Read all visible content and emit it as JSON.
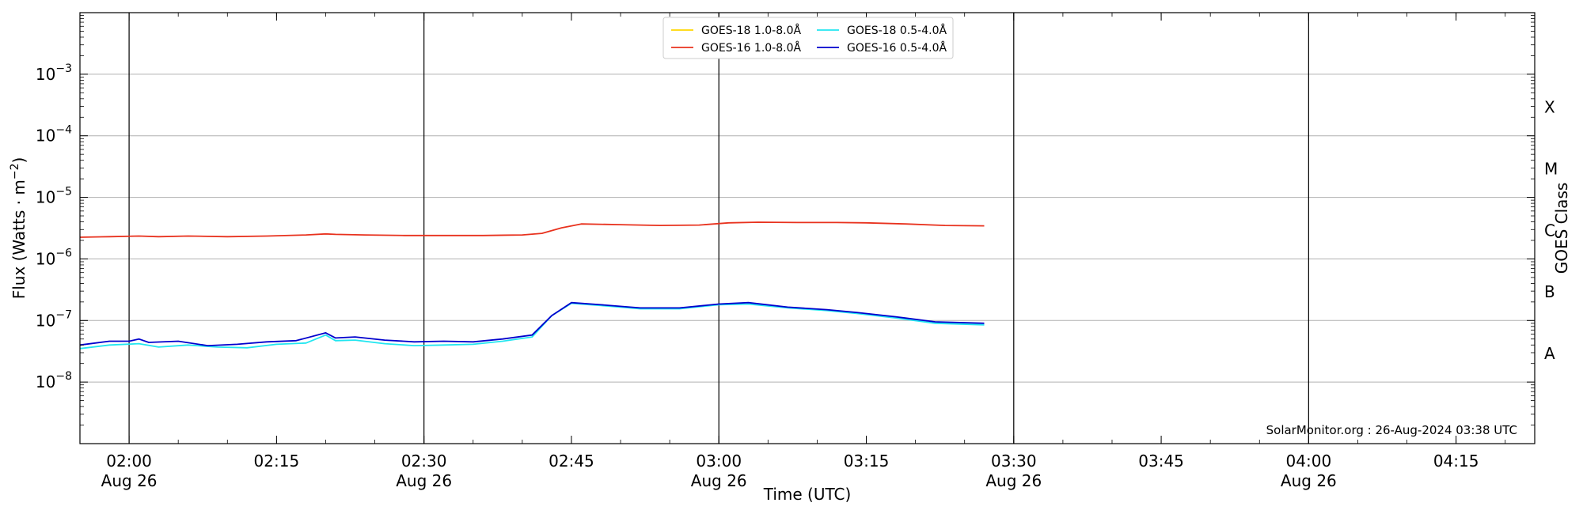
{
  "chart_data": {
    "type": "line",
    "title": "",
    "xlabel": "Time (UTC)",
    "ylabel": "Flux (Watts · m⁻²)",
    "right_ylabel": "GOES Class",
    "y_scale": "log",
    "ylim": [
      1e-09,
      0.01
    ],
    "xlim": [
      "2024-08-26T01:55",
      "2024-08-26T04:23"
    ],
    "grid": "horizontal at each decade",
    "legend_position": "top-center",
    "credit": "SolarMonitor.org : 26-Aug-2024 03:38 UTC",
    "y_ticks": [
      {
        "value": 1e-08,
        "base": "10",
        "exp": "−8"
      },
      {
        "value": 1e-07,
        "base": "10",
        "exp": "−7"
      },
      {
        "value": 1e-06,
        "base": "10",
        "exp": "−6"
      },
      {
        "value": 1e-05,
        "base": "10",
        "exp": "−5"
      },
      {
        "value": 0.0001,
        "base": "10",
        "exp": "−4"
      },
      {
        "value": 0.001,
        "base": "10",
        "exp": "−3"
      }
    ],
    "x_ticks": [
      {
        "time": "2024-08-26T02:00",
        "label": "02:00",
        "sublabel": "Aug 26"
      },
      {
        "time": "2024-08-26T02:15",
        "label": "02:15",
        "sublabel": ""
      },
      {
        "time": "2024-08-26T02:30",
        "label": "02:30",
        "sublabel": "Aug 26"
      },
      {
        "time": "2024-08-26T02:45",
        "label": "02:45",
        "sublabel": ""
      },
      {
        "time": "2024-08-26T03:00",
        "label": "03:00",
        "sublabel": "Aug 26"
      },
      {
        "time": "2024-08-26T03:15",
        "label": "03:15",
        "sublabel": ""
      },
      {
        "time": "2024-08-26T03:30",
        "label": "03:30",
        "sublabel": "Aug 26"
      },
      {
        "time": "2024-08-26T03:45",
        "label": "03:45",
        "sublabel": ""
      },
      {
        "time": "2024-08-26T04:00",
        "label": "04:00",
        "sublabel": "Aug 26"
      },
      {
        "time": "2024-08-26T04:15",
        "label": "04:15",
        "sublabel": ""
      }
    ],
    "vlines": [
      "2024-08-26T02:00",
      "2024-08-26T02:30",
      "2024-08-26T03:00",
      "2024-08-26T03:30",
      "2024-08-26T04:00"
    ],
    "goes_classes": [
      {
        "label": "A",
        "value": 3e-08
      },
      {
        "label": "B",
        "value": 3e-07
      },
      {
        "label": "C",
        "value": 3e-06
      },
      {
        "label": "M",
        "value": 3e-05
      },
      {
        "label": "X",
        "value": 0.0003
      }
    ],
    "series": [
      {
        "name": "GOES-18 1.0-8.0Å",
        "color": "#ffd700",
        "x": [],
        "y": []
      },
      {
        "name": "GOES-16 1.0-8.0Å",
        "color": "#e8321e",
        "x": [
          "2024-08-26T01:55",
          "2024-08-26T01:58",
          "2024-08-26T02:01",
          "2024-08-26T02:03",
          "2024-08-26T02:06",
          "2024-08-26T02:10",
          "2024-08-26T02:14",
          "2024-08-26T02:18",
          "2024-08-26T02:20",
          "2024-08-26T02:21",
          "2024-08-26T02:24",
          "2024-08-26T02:28",
          "2024-08-26T02:32",
          "2024-08-26T02:36",
          "2024-08-26T02:40",
          "2024-08-26T02:42",
          "2024-08-26T02:44",
          "2024-08-26T02:46",
          "2024-08-26T02:50",
          "2024-08-26T02:54",
          "2024-08-26T02:58",
          "2024-08-26T03:01",
          "2024-08-26T03:04",
          "2024-08-26T03:08",
          "2024-08-26T03:12",
          "2024-08-26T03:15",
          "2024-08-26T03:19",
          "2024-08-26T03:23",
          "2024-08-26T03:27"
        ],
        "y": [
          2.25e-06,
          2.3e-06,
          2.35e-06,
          2.3e-06,
          2.35e-06,
          2.3e-06,
          2.35e-06,
          2.45e-06,
          2.55e-06,
          2.5e-06,
          2.45e-06,
          2.4e-06,
          2.4e-06,
          2.4e-06,
          2.45e-06,
          2.6e-06,
          3.2e-06,
          3.7e-06,
          3.6e-06,
          3.5e-06,
          3.55e-06,
          3.85e-06,
          3.95e-06,
          3.9e-06,
          3.9e-06,
          3.85e-06,
          3.7e-06,
          3.5e-06,
          3.45e-06
        ]
      },
      {
        "name": "GOES-18 0.5-4.0Å",
        "color": "#22e6f0",
        "x": [
          "2024-08-26T01:55",
          "2024-08-26T01:58",
          "2024-08-26T02:01",
          "2024-08-26T02:03",
          "2024-08-26T02:06",
          "2024-08-26T02:09",
          "2024-08-26T02:12",
          "2024-08-26T02:15",
          "2024-08-26T02:18",
          "2024-08-26T02:20",
          "2024-08-26T02:21",
          "2024-08-26T02:23",
          "2024-08-26T02:26",
          "2024-08-26T02:29",
          "2024-08-26T02:32",
          "2024-08-26T02:35",
          "2024-08-26T02:38",
          "2024-08-26T02:41",
          "2024-08-26T02:43",
          "2024-08-26T02:45",
          "2024-08-26T02:48",
          "2024-08-26T02:52",
          "2024-08-26T02:56",
          "2024-08-26T03:00",
          "2024-08-26T03:03",
          "2024-08-26T03:07",
          "2024-08-26T03:11",
          "2024-08-26T03:14",
          "2024-08-26T03:18",
          "2024-08-26T03:22",
          "2024-08-26T03:27"
        ],
        "y": [
          3.5e-08,
          4e-08,
          4.2e-08,
          3.7e-08,
          4e-08,
          3.7e-08,
          3.6e-08,
          4.1e-08,
          4.3e-08,
          5.8e-08,
          4.7e-08,
          4.8e-08,
          4.2e-08,
          3.9e-08,
          4e-08,
          4.1e-08,
          4.6e-08,
          5.4e-08,
          1.2e-07,
          1.9e-07,
          1.75e-07,
          1.55e-07,
          1.55e-07,
          1.8e-07,
          1.85e-07,
          1.6e-07,
          1.45e-07,
          1.3e-07,
          1.1e-07,
          9e-08,
          8.5e-08
        ]
      },
      {
        "name": "GOES-16 0.5-4.0Å",
        "color": "#0000cd",
        "x": [
          "2024-08-26T01:55",
          "2024-08-26T01:58",
          "2024-08-26T02:00",
          "2024-08-26T02:01",
          "2024-08-26T02:02",
          "2024-08-26T02:05",
          "2024-08-26T02:08",
          "2024-08-26T02:11",
          "2024-08-26T02:14",
          "2024-08-26T02:17",
          "2024-08-26T02:20",
          "2024-08-26T02:21",
          "2024-08-26T02:23",
          "2024-08-26T02:26",
          "2024-08-26T02:29",
          "2024-08-26T02:32",
          "2024-08-26T02:35",
          "2024-08-26T02:38",
          "2024-08-26T02:41",
          "2024-08-26T02:43",
          "2024-08-26T02:45",
          "2024-08-26T02:48",
          "2024-08-26T02:52",
          "2024-08-26T02:56",
          "2024-08-26T03:00",
          "2024-08-26T03:03",
          "2024-08-26T03:07",
          "2024-08-26T03:11",
          "2024-08-26T03:14",
          "2024-08-26T03:18",
          "2024-08-26T03:22",
          "2024-08-26T03:27"
        ],
        "y": [
          4e-08,
          4.6e-08,
          4.6e-08,
          5e-08,
          4.4e-08,
          4.6e-08,
          3.9e-08,
          4.1e-08,
          4.5e-08,
          4.7e-08,
          6.3e-08,
          5.2e-08,
          5.4e-08,
          4.8e-08,
          4.5e-08,
          4.6e-08,
          4.5e-08,
          5e-08,
          5.8e-08,
          1.2e-07,
          1.95e-07,
          1.8e-07,
          1.6e-07,
          1.6e-07,
          1.85e-07,
          1.95e-07,
          1.65e-07,
          1.5e-07,
          1.35e-07,
          1.15e-07,
          9.5e-08,
          9e-08
        ]
      }
    ]
  }
}
